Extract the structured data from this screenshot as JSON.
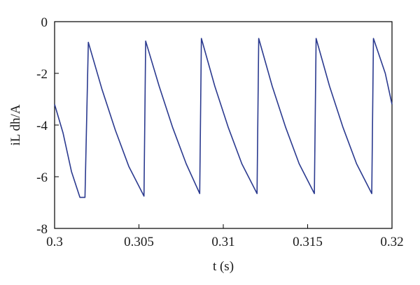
{
  "chart_data": {
    "type": "line",
    "xlabel": "t (s)",
    "ylabel": "iL dh/A",
    "xlim": [
      0.3,
      0.32
    ],
    "ylim": [
      -8,
      0
    ],
    "x_ticks": [
      0.3,
      0.305,
      0.31,
      0.315,
      0.32
    ],
    "x_tick_labels": [
      "0.3",
      "0.305",
      "0.31",
      "0.315",
      "0.32"
    ],
    "y_ticks": [
      0,
      -2,
      -4,
      -6,
      -8
    ],
    "y_tick_labels": [
      "0",
      "-2",
      "-4",
      "-6",
      "-8"
    ],
    "grid": false,
    "series": [
      {
        "color": "#2b3a8f",
        "x": [
          0.3,
          0.3005,
          0.301,
          0.3015,
          0.3018,
          0.302,
          0.3028,
          0.3036,
          0.3044,
          0.3053,
          0.3054,
          0.3062,
          0.307,
          0.3078,
          0.3086,
          0.3087,
          0.3095,
          0.3103,
          0.3111,
          0.312,
          0.3121,
          0.3129,
          0.3137,
          0.3145,
          0.3154,
          0.3155,
          0.3163,
          0.3171,
          0.3179,
          0.3188,
          0.3189,
          0.3196,
          0.32
        ],
        "y": [
          -3.2,
          -4.3,
          -5.8,
          -6.8,
          -6.8,
          -0.8,
          -2.6,
          -4.2,
          -5.6,
          -6.75,
          -0.75,
          -2.5,
          -4.1,
          -5.5,
          -6.65,
          -0.65,
          -2.5,
          -4.1,
          -5.5,
          -6.65,
          -0.65,
          -2.5,
          -4.1,
          -5.5,
          -6.65,
          -0.65,
          -2.5,
          -4.1,
          -5.5,
          -6.65,
          -0.65,
          -2.0,
          -3.2
        ]
      }
    ]
  }
}
